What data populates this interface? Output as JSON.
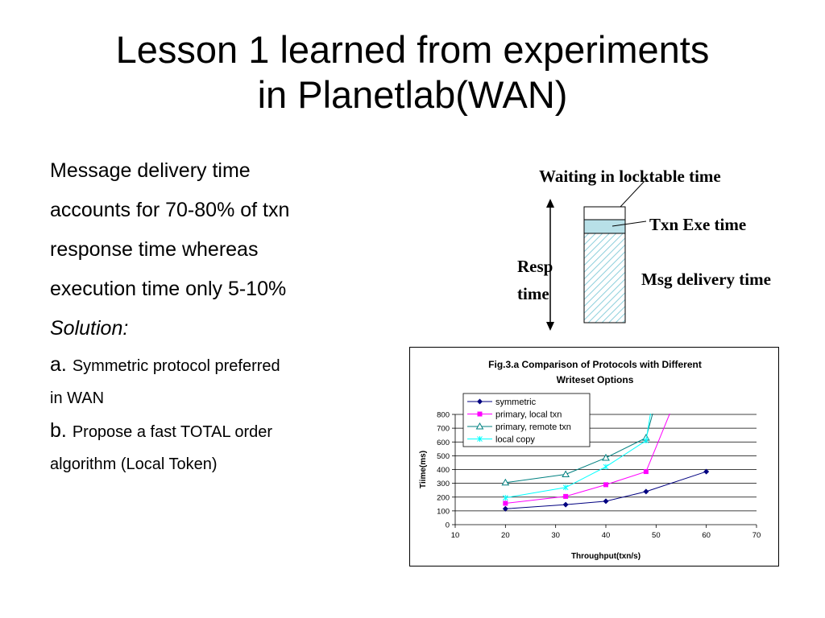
{
  "slide": {
    "title_line1": "Lesson 1 learned from experiments",
    "title_line2": "in Planetlab(WAN)",
    "body": {
      "line1": "Message delivery time",
      "line2": "accounts for 70-80% of txn",
      "line3": "response time whereas",
      "line4": "execution time only 5-10%",
      "solution": "Solution:",
      "a_marker": "a.",
      "a_text": "Symmetric protocol preferred",
      "a_text2": "in WAN",
      "b_marker": "b.",
      "b_text": "Propose a fast TOTAL order",
      "b_text2": "algorithm (Local Token)"
    }
  },
  "diagram": {
    "label_waiting": "Waiting in locktable time",
    "label_exe": "Txn Exe time",
    "label_msg": "Msg delivery time",
    "label_resp1": "Resp",
    "label_resp2": "time"
  },
  "chart_data": {
    "type": "line",
    "title_line1": "Fig.3.a Comparison of Protocols with Different",
    "title_line2": "Writeset Options",
    "xlabel": "Throughput(txn/s)",
    "ylabel": "Tiime(ms)",
    "xlim": [
      10,
      70
    ],
    "ylim": [
      0,
      800
    ],
    "xticks": [
      10,
      20,
      30,
      40,
      50,
      60,
      70
    ],
    "yticks": [
      0,
      100,
      200,
      300,
      400,
      500,
      600,
      700,
      800
    ],
    "grid": "horizontal",
    "legend": "top-left",
    "series": [
      {
        "name": "symmetric",
        "color": "#000080",
        "marker": "diamond",
        "points": [
          [
            20,
            115
          ],
          [
            32,
            145
          ],
          [
            40,
            170
          ],
          [
            48,
            240
          ],
          [
            60,
            385
          ]
        ]
      },
      {
        "name": "primary, local txn",
        "color": "#FF00FF",
        "marker": "square",
        "points": [
          [
            20,
            155
          ],
          [
            32,
            205
          ],
          [
            40,
            290
          ],
          [
            48,
            385
          ],
          [
            53,
            830
          ]
        ]
      },
      {
        "name": "primary, remote txn",
        "color": "#008080",
        "marker": "triangle",
        "points": [
          [
            20,
            305
          ],
          [
            32,
            365
          ],
          [
            40,
            485
          ],
          [
            48,
            630
          ],
          [
            49.5,
            830
          ]
        ]
      },
      {
        "name": "local copy",
        "color": "#00FFFF",
        "marker": "x",
        "points": [
          [
            20,
            195
          ],
          [
            32,
            270
          ],
          [
            40,
            420
          ],
          [
            48,
            610
          ],
          [
            49,
            830
          ]
        ]
      }
    ]
  }
}
